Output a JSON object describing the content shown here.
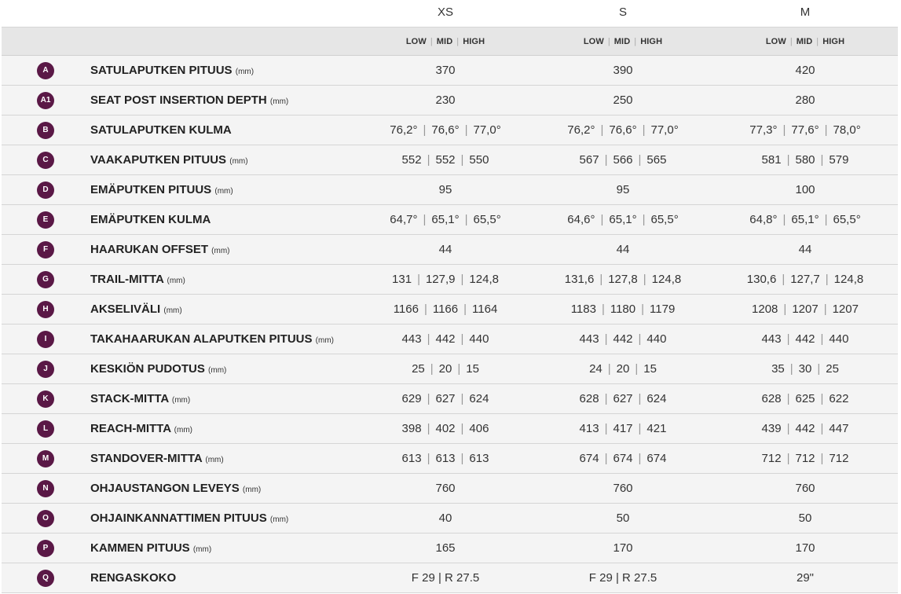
{
  "sizes": [
    "XS",
    "S",
    "M"
  ],
  "modes": [
    "LOW",
    "MID",
    "HIGH"
  ],
  "badge_color": "#5a1846",
  "rows": [
    {
      "badge": "A",
      "label": "SATULAPUTKEN PITUUS",
      "unit": "(mm)",
      "values": [
        [
          "370"
        ],
        [
          "390"
        ],
        [
          "420"
        ]
      ]
    },
    {
      "badge": "A1",
      "label": "SEAT POST INSERTION DEPTH",
      "unit": "(mm)",
      "values": [
        [
          "230"
        ],
        [
          "250"
        ],
        [
          "280"
        ]
      ]
    },
    {
      "badge": "B",
      "label": "SATULAPUTKEN KULMA",
      "unit": "",
      "values": [
        [
          "76,2°",
          "76,6°",
          "77,0°"
        ],
        [
          "76,2°",
          "76,6°",
          "77,0°"
        ],
        [
          "77,3°",
          "77,6°",
          "78,0°"
        ]
      ]
    },
    {
      "badge": "C",
      "label": "VAAKAPUTKEN PITUUS",
      "unit": "(mm)",
      "values": [
        [
          "552",
          "552",
          "550"
        ],
        [
          "567",
          "566",
          "565"
        ],
        [
          "581",
          "580",
          "579"
        ]
      ]
    },
    {
      "badge": "D",
      "label": "EMÄPUTKEN PITUUS",
      "unit": "(mm)",
      "values": [
        [
          "95"
        ],
        [
          "95"
        ],
        [
          "100"
        ]
      ]
    },
    {
      "badge": "E",
      "label": "EMÄPUTKEN KULMA",
      "unit": "",
      "values": [
        [
          "64,7°",
          "65,1°",
          "65,5°"
        ],
        [
          "64,6°",
          "65,1°",
          "65,5°"
        ],
        [
          "64,8°",
          "65,1°",
          "65,5°"
        ]
      ]
    },
    {
      "badge": "F",
      "label": "HAARUKAN OFFSET",
      "unit": "(mm)",
      "values": [
        [
          "44"
        ],
        [
          "44"
        ],
        [
          "44"
        ]
      ]
    },
    {
      "badge": "G",
      "label": "TRAIL-MITTA",
      "unit": "(mm)",
      "values": [
        [
          "131",
          "127,9",
          "124,8"
        ],
        [
          "131,6",
          "127,8",
          "124,8"
        ],
        [
          "130,6",
          "127,7",
          "124,8"
        ]
      ]
    },
    {
      "badge": "H",
      "label": "AKSELIVÄLI",
      "unit": "(mm)",
      "values": [
        [
          "1166",
          "1166",
          "1164"
        ],
        [
          "1183",
          "1180",
          "1179"
        ],
        [
          "1208",
          "1207",
          "1207"
        ]
      ]
    },
    {
      "badge": "I",
      "label": "TAKAHAARUKAN ALAPUTKEN PITUUS",
      "unit": "(mm)",
      "values": [
        [
          "443",
          "442",
          "440"
        ],
        [
          "443",
          "442",
          "440"
        ],
        [
          "443",
          "442",
          "440"
        ]
      ]
    },
    {
      "badge": "J",
      "label": "KESKIÖN PUDOTUS",
      "unit": "(mm)",
      "values": [
        [
          "25",
          "20",
          "15"
        ],
        [
          "24",
          "20",
          "15"
        ],
        [
          "35",
          "30",
          "25"
        ]
      ]
    },
    {
      "badge": "K",
      "label": "STACK-MITTA",
      "unit": "(mm)",
      "values": [
        [
          "629",
          "627",
          "624"
        ],
        [
          "628",
          "627",
          "624"
        ],
        [
          "628",
          "625",
          "622"
        ]
      ]
    },
    {
      "badge": "L",
      "label": "REACH-MITTA",
      "unit": "(mm)",
      "values": [
        [
          "398",
          "402",
          "406"
        ],
        [
          "413",
          "417",
          "421"
        ],
        [
          "439",
          "442",
          "447"
        ]
      ]
    },
    {
      "badge": "M",
      "label": "STANDOVER-MITTA",
      "unit": "(mm)",
      "values": [
        [
          "613",
          "613",
          "613"
        ],
        [
          "674",
          "674",
          "674"
        ],
        [
          "712",
          "712",
          "712"
        ]
      ]
    },
    {
      "badge": "N",
      "label": "OHJAUSTANGON LEVEYS",
      "unit": "(mm)",
      "values": [
        [
          "760"
        ],
        [
          "760"
        ],
        [
          "760"
        ]
      ]
    },
    {
      "badge": "O",
      "label": "OHJAINKANNATTIMEN PITUUS",
      "unit": "(mm)",
      "values": [
        [
          "40"
        ],
        [
          "50"
        ],
        [
          "50"
        ]
      ]
    },
    {
      "badge": "P",
      "label": "KAMMEN PITUUS",
      "unit": "(mm)",
      "values": [
        [
          "165"
        ],
        [
          "170"
        ],
        [
          "170"
        ]
      ]
    },
    {
      "badge": "Q",
      "label": "RENGASKOKO",
      "unit": "",
      "values": [
        [
          "F 29 | R 27.5"
        ],
        [
          "F 29 | R 27.5"
        ],
        [
          "29\""
        ]
      ]
    }
  ]
}
